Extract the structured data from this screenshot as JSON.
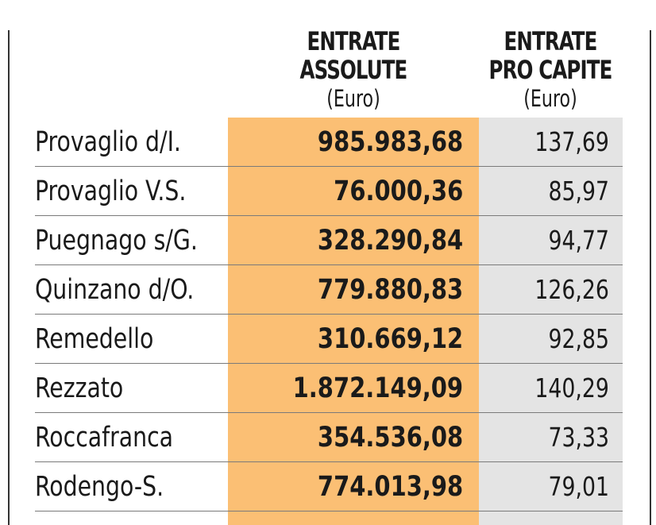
{
  "headers": {
    "col1_title_line1": "ENTRATE",
    "col1_title_line2": "ASSOLUTE",
    "col1_unit": "(Euro)",
    "col2_title_line1": "ENTRATE",
    "col2_title_line2": "PRO CAPITE",
    "col2_unit": "(Euro)"
  },
  "rows": [
    {
      "name": "Provaglio d/I.",
      "absolute": "985.983,68",
      "per_capita": "137,69"
    },
    {
      "name": "Provaglio V.S.",
      "absolute": "76.000,36",
      "per_capita": "85,97"
    },
    {
      "name": "Puegnago s/G.",
      "absolute": "328.290,84",
      "per_capita": "94,77"
    },
    {
      "name": "Quinzano d/O.",
      "absolute": "779.880,83",
      "per_capita": "126,26"
    },
    {
      "name": "Remedello",
      "absolute": "310.669,12",
      "per_capita": "92,85"
    },
    {
      "name": "Rezzato",
      "absolute": "1.872.149,09",
      "per_capita": "140,29"
    },
    {
      "name": "Roccafranca",
      "absolute": "354.536,08",
      "per_capita": "73,33"
    },
    {
      "name": "Rodengo-S.",
      "absolute": "774.013,98",
      "per_capita": "79,01"
    }
  ],
  "colors": {
    "absolute_column": "#fbbf74",
    "per_capita_column": "#e4e4e4"
  }
}
